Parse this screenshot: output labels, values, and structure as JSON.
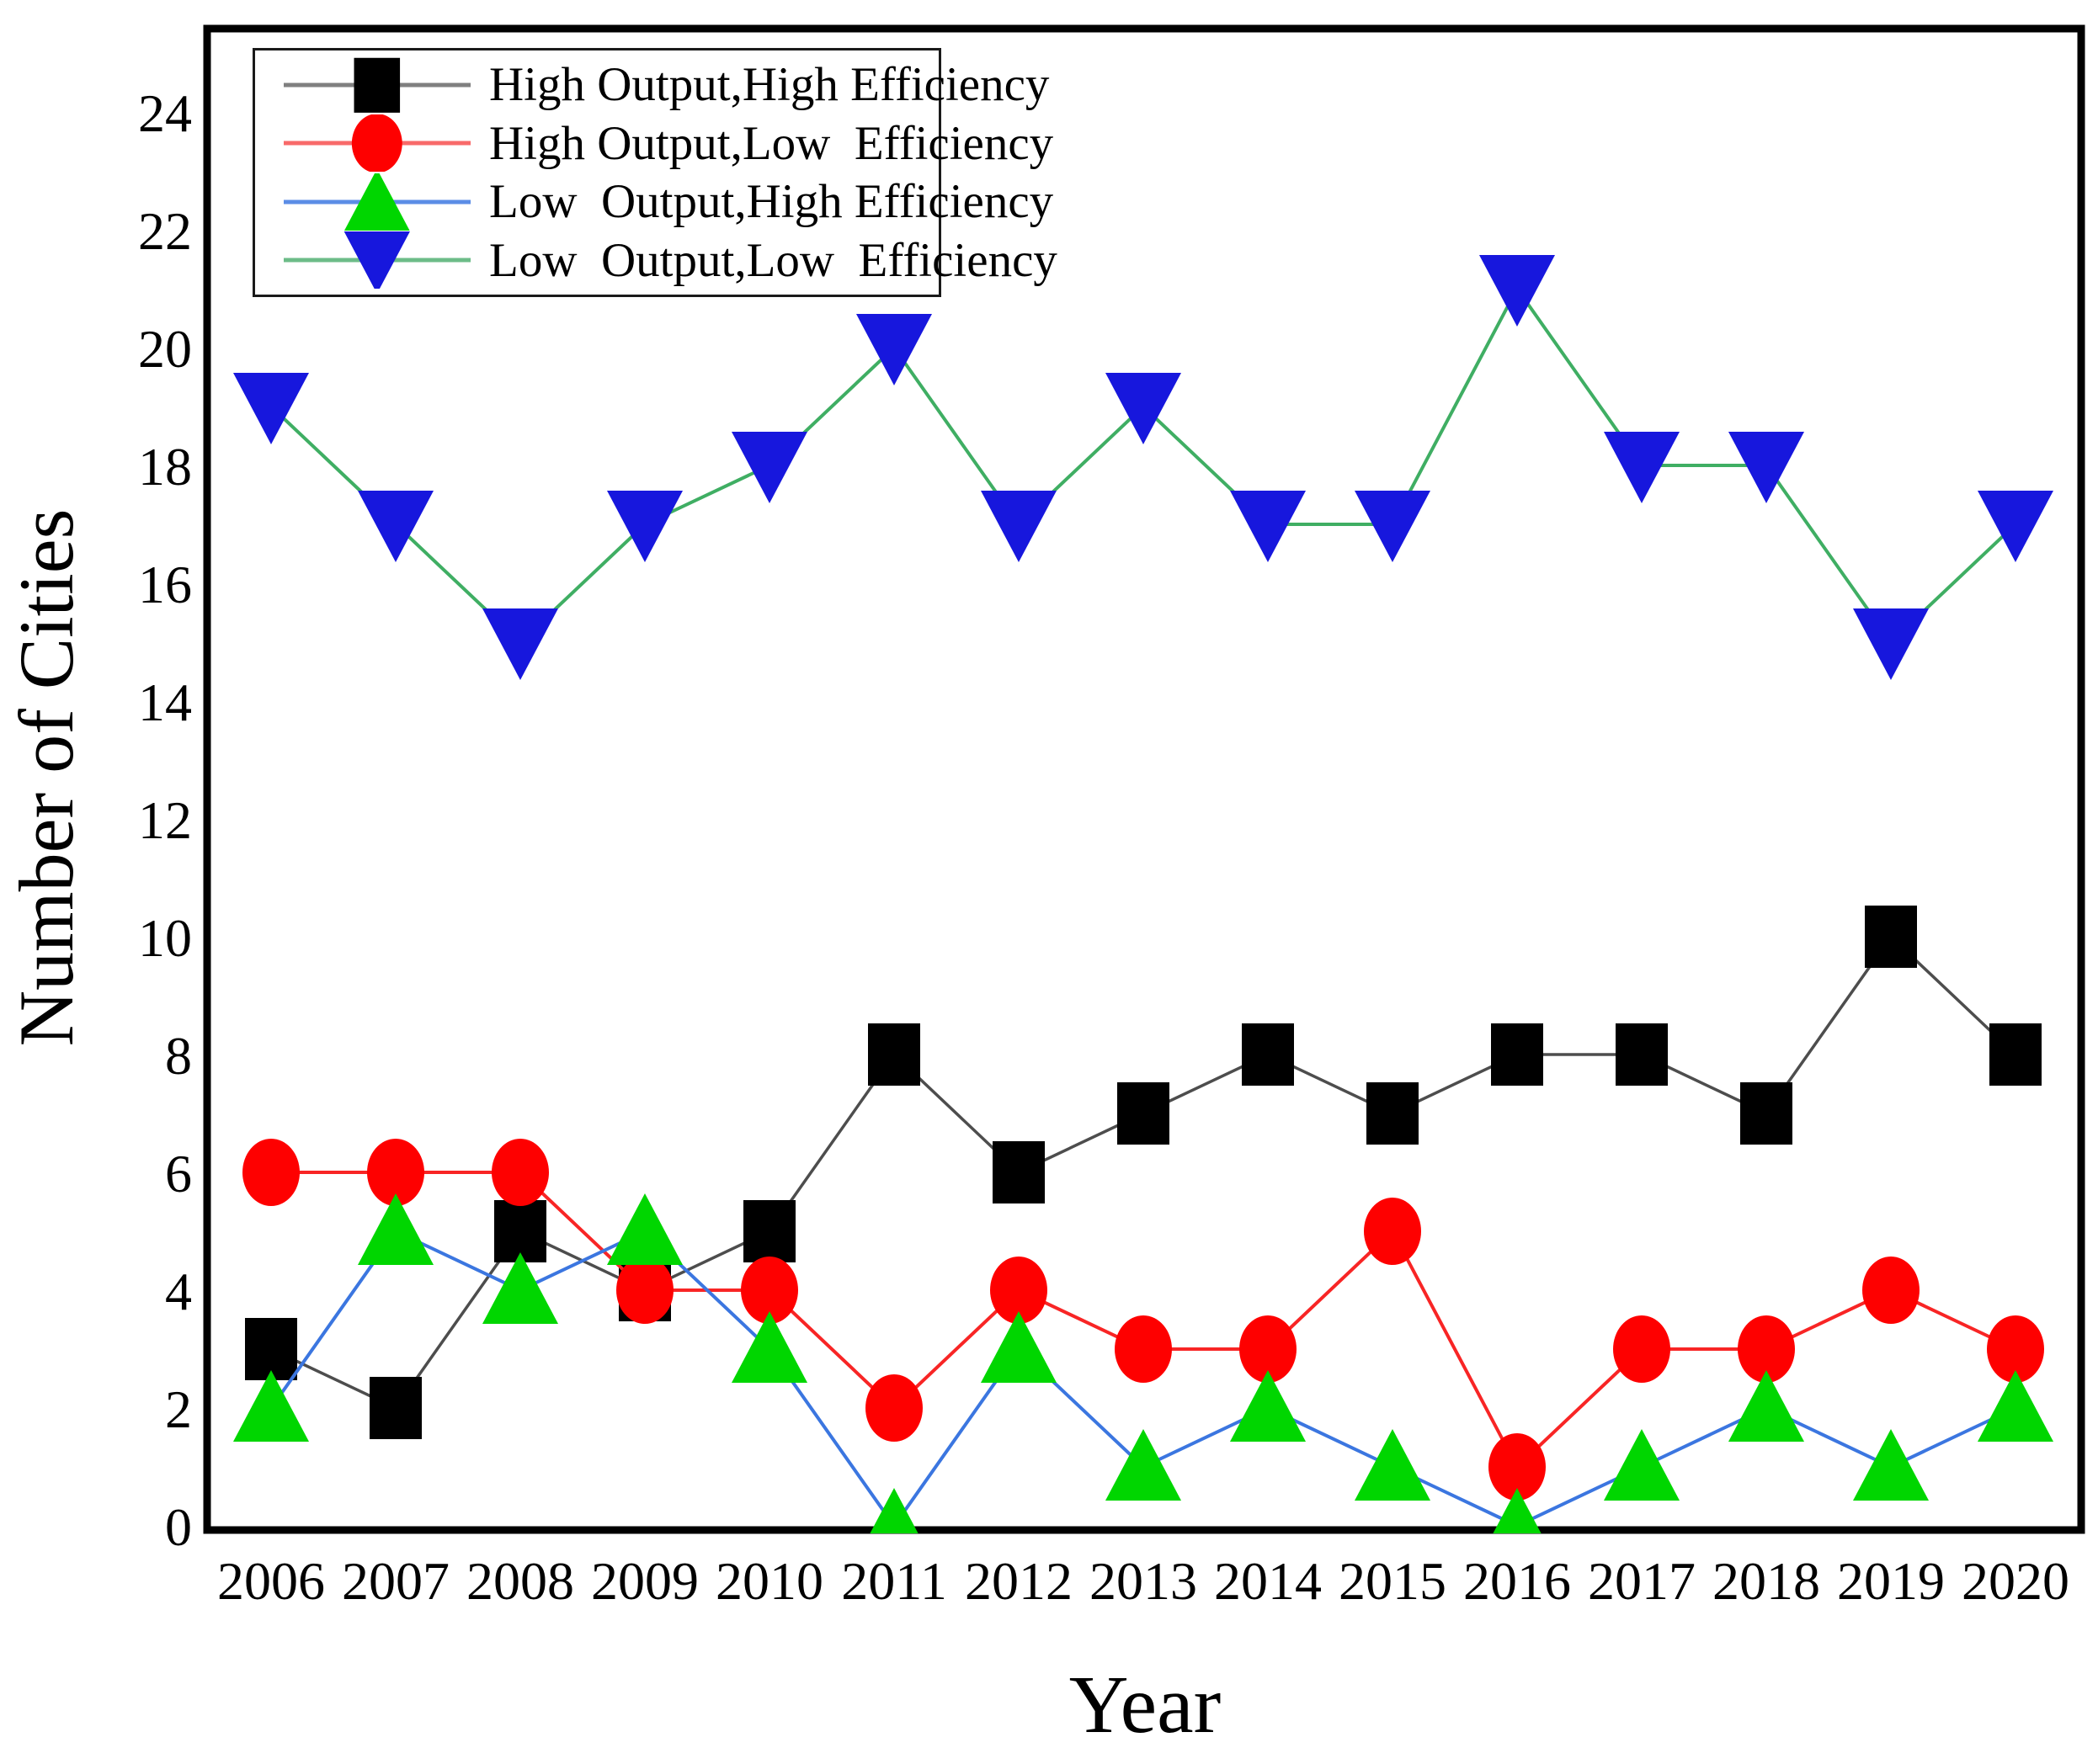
{
  "figure": {
    "background_color": "#ffffff",
    "frame_color": "#000000"
  },
  "axes": {
    "y_title": "Number of Cities",
    "x_title": "Year"
  },
  "chart_data": {
    "type": "line",
    "x": [
      2006,
      2007,
      2008,
      2009,
      2010,
      2011,
      2012,
      2013,
      2014,
      2015,
      2016,
      2017,
      2018,
      2019,
      2020
    ],
    "xlabel": "Year",
    "ylabel": "Number of Cities",
    "ylim": [
      0,
      25.4
    ],
    "yticks": [
      0,
      2,
      4,
      6,
      8,
      10,
      12,
      14,
      16,
      18,
      20,
      22,
      24
    ],
    "grid": false,
    "legend_position": "top-left",
    "series": [
      {
        "name": "High Output,High Efficiency",
        "marker": "square",
        "marker_color": "#000000",
        "line_color": "#4d4d4d",
        "legend_line_color": "#808080",
        "values": [
          3,
          2,
          5,
          4,
          5,
          8,
          6,
          7,
          8,
          7,
          8,
          8,
          7,
          10,
          8
        ]
      },
      {
        "name": "High Output,Low  Efficiency",
        "marker": "circle",
        "marker_color": "#fe0000",
        "line_color": "#f82525",
        "legend_line_color": "#f86a6a",
        "values": [
          6,
          6,
          6,
          4,
          4,
          2,
          4,
          3,
          3,
          5,
          1,
          3,
          3,
          4,
          3
        ]
      },
      {
        "name": "Low  Output,High Efficiency",
        "marker": "triangle-up",
        "marker_color": "#00d600",
        "line_color": "#3b76e0",
        "legend_line_color": "#5b8de6",
        "values": [
          2,
          5,
          4,
          5,
          3,
          0,
          3,
          1,
          2,
          1,
          0,
          1,
          2,
          1,
          2
        ]
      },
      {
        "name": "Low  Output,Low  Efficiency",
        "marker": "triangle-down",
        "marker_color": "#1717dd",
        "line_color": "#3fae63",
        "legend_line_color": "#6cbc88",
        "values": [
          19,
          17,
          15,
          17,
          18,
          20,
          17,
          19,
          17,
          17,
          21,
          18,
          18,
          15,
          17
        ]
      }
    ]
  }
}
